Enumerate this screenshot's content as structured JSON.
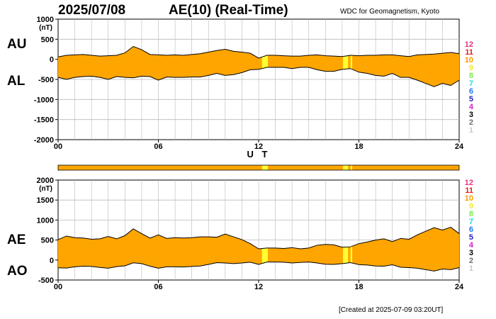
{
  "header": {
    "date": "2025/07/08",
    "title": "AE(10) (Real-Time)",
    "org": "WDC for Geomagnetism, Kyoto"
  },
  "footer": {
    "created": "[Created at 2025-07-09 03:20UT]"
  },
  "level_legend": [
    {
      "label": "12",
      "color": "#e8307f"
    },
    {
      "label": "11",
      "color": "#e61e1e"
    },
    {
      "label": "10",
      "color": "#ff9a00"
    },
    {
      "label": "9",
      "color": "#f2e830"
    },
    {
      "label": "8",
      "color": "#7ee84a"
    },
    {
      "label": "7",
      "color": "#20d8e0"
    },
    {
      "label": "6",
      "color": "#1e78ff"
    },
    {
      "label": "5",
      "color": "#2020c8"
    },
    {
      "label": "4",
      "color": "#d020d0"
    },
    {
      "label": "3",
      "color": "#000000"
    },
    {
      "label": "2",
      "color": "#6e6e6e"
    },
    {
      "label": "1",
      "color": "#c8c8c8"
    }
  ],
  "colors": {
    "fill": "#ffa500",
    "highlight": "#ffff33",
    "grid": "#b8b8b8"
  },
  "chart_data": [
    {
      "type": "area",
      "panel": "AU/AL",
      "series_labels": [
        "AU",
        "AL"
      ],
      "unit": "(nT)",
      "xlabel": "U T",
      "xticks": [
        "00",
        "06",
        "12",
        "18",
        "24"
      ],
      "xlim": [
        0,
        24
      ],
      "ylim": [
        -2000,
        1000
      ],
      "yticks": [
        1000,
        500,
        0,
        -500,
        -1000,
        -1500,
        -2000
      ],
      "grid": true,
      "x": [
        0,
        0.5,
        1,
        1.5,
        2,
        2.5,
        3,
        3.5,
        4,
        4.5,
        5,
        5.5,
        6,
        6.5,
        7,
        7.5,
        8,
        8.5,
        9,
        9.5,
        10,
        10.5,
        11,
        11.5,
        12,
        12.5,
        13,
        13.5,
        14,
        14.5,
        15,
        15.5,
        16,
        16.5,
        17,
        17.5,
        18,
        18.5,
        19,
        19.5,
        20,
        20.5,
        21,
        21.5,
        22,
        22.5,
        23,
        23.5,
        24
      ],
      "AU": [
        60,
        100,
        110,
        120,
        100,
        80,
        90,
        100,
        160,
        320,
        240,
        120,
        110,
        100,
        110,
        100,
        120,
        140,
        180,
        220,
        250,
        200,
        180,
        150,
        30,
        100,
        100,
        90,
        80,
        80,
        100,
        110,
        90,
        80,
        70,
        100,
        90,
        100,
        100,
        110,
        110,
        90,
        70,
        110,
        120,
        130,
        150,
        170,
        140
      ],
      "AL": [
        -450,
        -500,
        -450,
        -430,
        -420,
        -450,
        -500,
        -430,
        -450,
        -460,
        -420,
        -430,
        -520,
        -440,
        -450,
        -450,
        -440,
        -440,
        -400,
        -350,
        -400,
        -380,
        -330,
        -260,
        -250,
        -200,
        -200,
        -200,
        -230,
        -200,
        -200,
        -260,
        -300,
        -300,
        -250,
        -230,
        -320,
        -350,
        -400,
        -420,
        -350,
        -450,
        -450,
        -520,
        -600,
        -680,
        -600,
        -650,
        -520
      ]
    },
    {
      "type": "area",
      "panel": "AE/AO",
      "series_labels": [
        "AE",
        "AO"
      ],
      "unit": "(nT)",
      "xlabel": "U T",
      "xticks": [
        "00",
        "06",
        "12",
        "18",
        "24"
      ],
      "xlim": [
        0,
        24
      ],
      "ylim": [
        -500,
        2000
      ],
      "yticks": [
        2000,
        1500,
        1000,
        500,
        0,
        -500
      ],
      "grid": true,
      "x": [
        0,
        0.5,
        1,
        1.5,
        2,
        2.5,
        3,
        3.5,
        4,
        4.5,
        5,
        5.5,
        6,
        6.5,
        7,
        7.5,
        8,
        8.5,
        9,
        9.5,
        10,
        10.5,
        11,
        11.5,
        12,
        12.5,
        13,
        13.5,
        14,
        14.5,
        15,
        15.5,
        16,
        16.5,
        17,
        17.5,
        18,
        18.5,
        19,
        19.5,
        20,
        20.5,
        21,
        21.5,
        22,
        22.5,
        23,
        23.5,
        24
      ],
      "AE": [
        510,
        600,
        560,
        550,
        520,
        530,
        590,
        530,
        610,
        780,
        660,
        550,
        630,
        540,
        560,
        550,
        560,
        580,
        580,
        570,
        650,
        580,
        510,
        410,
        280,
        300,
        300,
        290,
        310,
        280,
        300,
        370,
        390,
        380,
        320,
        330,
        410,
        450,
        500,
        530,
        460,
        540,
        520,
        630,
        720,
        810,
        750,
        820,
        660
      ],
      "AO": [
        -195,
        -200,
        -170,
        -155,
        -160,
        -185,
        -205,
        -165,
        -145,
        -70,
        -90,
        -155,
        -205,
        -170,
        -170,
        -175,
        -160,
        -150,
        -110,
        -65,
        -75,
        -90,
        -75,
        -55,
        -110,
        -50,
        -50,
        -55,
        -75,
        -60,
        -50,
        -75,
        -105,
        -110,
        -90,
        -65,
        -115,
        -125,
        -150,
        -155,
        -120,
        -180,
        -190,
        -205,
        -240,
        -275,
        -225,
        -240,
        -190
      ]
    }
  ],
  "highlight_bands": [
    {
      "x0": 12.2,
      "x1": 12.55
    },
    {
      "x0": 17.05,
      "x1": 17.35
    },
    {
      "x0": 17.5,
      "x1": 17.6
    }
  ]
}
